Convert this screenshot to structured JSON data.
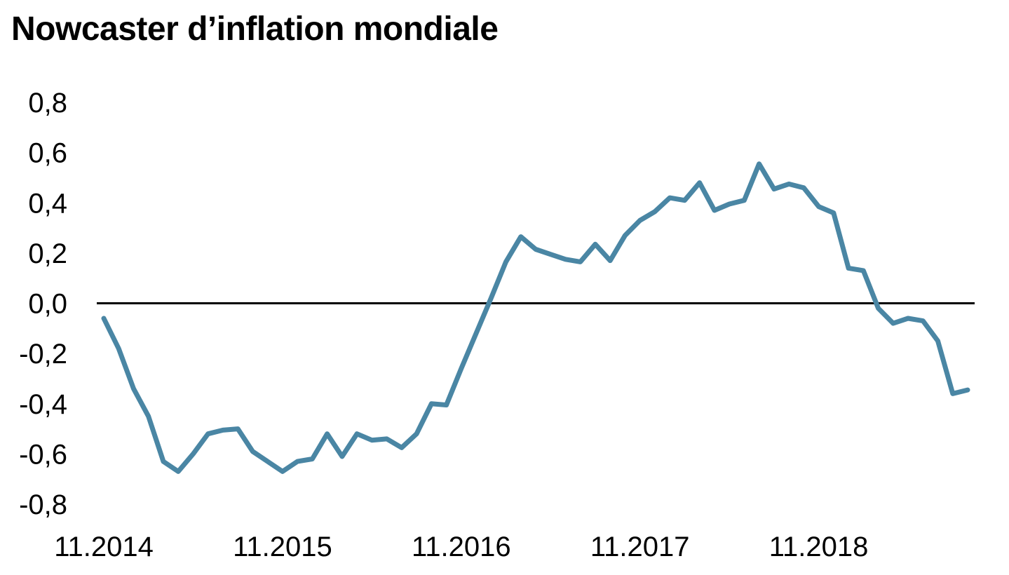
{
  "chart_data": {
    "type": "line",
    "title": "Nowcaster d’inflation mondiale",
    "xlabel": "",
    "ylabel": "",
    "ylim": [
      -0.8,
      0.8
    ],
    "y_ticks": [
      "0,8",
      "0,6",
      "0,4",
      "0,2",
      "0,0",
      "-0,2",
      "-0,4",
      "-0,6",
      "-0,8"
    ],
    "y_tick_values": [
      0.8,
      0.6,
      0.4,
      0.2,
      0.0,
      -0.2,
      -0.4,
      -0.6,
      -0.8
    ],
    "x_ticks": [
      "11.2014",
      "11.2015",
      "11.2016",
      "11.2017",
      "11.2018"
    ],
    "x_tick_index": [
      0,
      12,
      24,
      36,
      48
    ],
    "grid": false,
    "zero_line": true,
    "line_color": "#4a86a4",
    "series": [
      {
        "values": [
          -0.06,
          -0.18,
          -0.34,
          -0.45,
          -0.63,
          -0.67,
          -0.6,
          -0.52,
          -0.505,
          -0.5,
          -0.59,
          -0.63,
          -0.67,
          -0.63,
          -0.62,
          -0.52,
          -0.61,
          -0.52,
          -0.545,
          -0.54,
          -0.575,
          -0.52,
          -0.4,
          -0.405,
          -0.26,
          -0.12,
          0.02,
          0.165,
          0.265,
          0.215,
          0.195,
          0.175,
          0.165,
          0.235,
          0.17,
          0.27,
          0.33,
          0.365,
          0.42,
          0.41,
          0.48,
          0.37,
          0.395,
          0.41,
          0.555,
          0.455,
          0.475,
          0.46,
          0.385,
          0.36,
          0.14,
          0.13,
          -0.02,
          -0.08,
          -0.06,
          -0.07,
          -0.15,
          -0.36,
          -0.345
        ]
      }
    ]
  }
}
